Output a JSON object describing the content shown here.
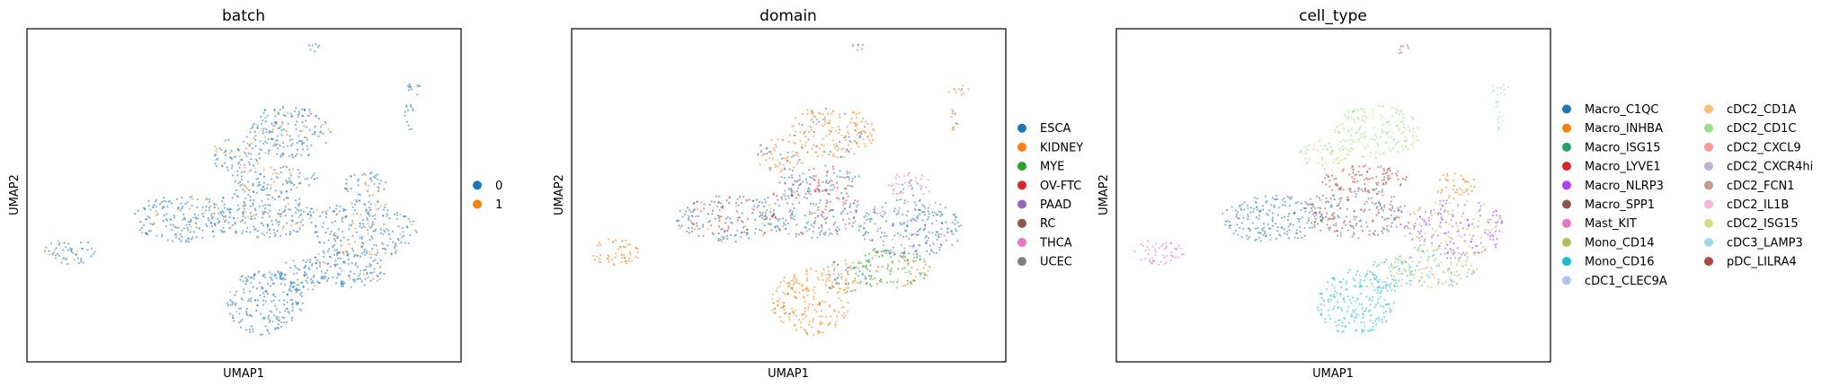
{
  "figure": {
    "panels": [
      {
        "title": "batch",
        "xlabel": "UMAP1",
        "ylabel": "UMAP2",
        "legend_columns": 1,
        "legend": [
          {
            "label": "0",
            "color": "#1f77b4"
          },
          {
            "label": "1",
            "color": "#ff7f0e"
          }
        ]
      },
      {
        "title": "domain",
        "xlabel": "UMAP1",
        "ylabel": "UMAP2",
        "legend_columns": 1,
        "legend": [
          {
            "label": "ESCA",
            "color": "#1f77b4"
          },
          {
            "label": "KIDNEY",
            "color": "#ff7f0e"
          },
          {
            "label": "MYE",
            "color": "#2ca02c"
          },
          {
            "label": "OV-FTC",
            "color": "#d62728"
          },
          {
            "label": "PAAD",
            "color": "#9467bd"
          },
          {
            "label": "RC",
            "color": "#8c564b"
          },
          {
            "label": "THCA",
            "color": "#e377c2"
          },
          {
            "label": "UCEC",
            "color": "#7f7f7f"
          }
        ]
      },
      {
        "title": "cell_type",
        "xlabel": "UMAP1",
        "ylabel": "UMAP2",
        "legend_columns": 2,
        "legend": [
          {
            "label": "Macro_C1QC",
            "color": "#1f77b4"
          },
          {
            "label": "Macro_INHBA",
            "color": "#ff7f0e"
          },
          {
            "label": "Macro_ISG15",
            "color": "#279e68"
          },
          {
            "label": "Macro_LYVE1",
            "color": "#d62728"
          },
          {
            "label": "Macro_NLRP3",
            "color": "#aa40fc"
          },
          {
            "label": "Macro_SPP1",
            "color": "#8c564b"
          },
          {
            "label": "Mast_KIT",
            "color": "#e377c2"
          },
          {
            "label": "Mono_CD14",
            "color": "#b5bd61"
          },
          {
            "label": "Mono_CD16",
            "color": "#17becf"
          },
          {
            "label": "cDC1_CLEC9A",
            "color": "#aec7e8"
          },
          {
            "label": "cDC2_CD1A",
            "color": "#ffbb78"
          },
          {
            "label": "cDC2_CD1C",
            "color": "#98df8a"
          },
          {
            "label": "cDC2_CXCL9",
            "color": "#ff9896"
          },
          {
            "label": "cDC2_CXCR4hi",
            "color": "#c5b0d5"
          },
          {
            "label": "cDC2_FCN1",
            "color": "#c49c94"
          },
          {
            "label": "cDC2_IL1B",
            "color": "#f7b6d2"
          },
          {
            "label": "cDC2_ISG15",
            "color": "#dbdb8d"
          },
          {
            "label": "cDC3_LAMP3",
            "color": "#9edae5"
          },
          {
            "label": "pDC_LILRA4",
            "color": "#ad494a"
          }
        ]
      }
    ]
  },
  "chart_data": [
    {
      "type": "scatter",
      "title": "batch",
      "xlabel": "UMAP1",
      "ylabel": "UMAP2",
      "grid": false,
      "ticks": false,
      "legend_placement": "right",
      "series": [
        {
          "name": "0",
          "color": "#1f77b4",
          "regions": [
            "large central cluster",
            "upper cluster",
            "lower-left cluster",
            "bottom tail",
            "right lobe",
            "left island",
            "top-right island",
            "top island"
          ]
        },
        {
          "name": "1",
          "color": "#ff7f0e",
          "regions": [
            "left island edge",
            "scattered across central and right lobes"
          ]
        }
      ]
    },
    {
      "type": "scatter",
      "title": "domain",
      "xlabel": "UMAP1",
      "ylabel": "UMAP2",
      "grid": false,
      "ticks": false,
      "legend_placement": "right",
      "series": [
        {
          "name": "ESCA",
          "color": "#1f77b4",
          "regions": [
            "central cluster",
            "right lobe"
          ]
        },
        {
          "name": "KIDNEY",
          "color": "#ff7f0e",
          "regions": [
            "upper cluster",
            "bottom tail",
            "left island",
            "top-right island"
          ]
        },
        {
          "name": "MYE",
          "color": "#2ca02c",
          "regions": [
            "lower-right blob"
          ]
        },
        {
          "name": "OV-FTC",
          "color": "#d62728",
          "regions": [
            "left central band"
          ]
        },
        {
          "name": "PAAD",
          "color": "#9467bd",
          "regions": [
            "mid band"
          ]
        },
        {
          "name": "RC",
          "color": "#8c564b",
          "regions": [
            "scattered"
          ]
        },
        {
          "name": "THCA",
          "color": "#e377c2",
          "regions": [
            "right-mid small cluster"
          ]
        },
        {
          "name": "UCEC",
          "color": "#7f7f7f",
          "regions": [
            "scattered"
          ]
        }
      ]
    },
    {
      "type": "scatter",
      "title": "cell_type",
      "xlabel": "UMAP1",
      "ylabel": "UMAP2",
      "grid": false,
      "ticks": false,
      "legend_placement": "right",
      "series": [
        {
          "name": "Macro_C1QC",
          "color": "#1f77b4",
          "regions": [
            "left central cluster"
          ]
        },
        {
          "name": "Macro_INHBA",
          "color": "#ff7f0e",
          "regions": [
            "right-mid cluster"
          ]
        },
        {
          "name": "Macro_ISG15",
          "color": "#279e68",
          "regions": [
            "small mid cluster"
          ]
        },
        {
          "name": "Macro_LYVE1",
          "color": "#d62728",
          "regions": [
            "center cluster"
          ]
        },
        {
          "name": "Macro_NLRP3",
          "color": "#aa40fc",
          "regions": [
            "right lobe"
          ]
        },
        {
          "name": "Macro_SPP1",
          "color": "#8c564b",
          "regions": [
            "mid band"
          ]
        },
        {
          "name": "Mast_KIT",
          "color": "#e377c2",
          "regions": [
            "left island"
          ]
        },
        {
          "name": "Mono_CD14",
          "color": "#b5bd61",
          "regions": [
            "lower-right lobe"
          ]
        },
        {
          "name": "Mono_CD16",
          "color": "#17becf",
          "regions": [
            "bottom tail"
          ]
        },
        {
          "name": "cDC1_CLEC9A",
          "color": "#aec7e8",
          "regions": [
            "top-right island"
          ]
        },
        {
          "name": "cDC2_CD1A",
          "color": "#ffbb78",
          "regions": [
            "scattered"
          ]
        },
        {
          "name": "cDC2_CD1C",
          "color": "#98df8a",
          "regions": [
            "upper cluster"
          ]
        },
        {
          "name": "cDC2_CXCL9",
          "color": "#ff9896",
          "regions": [
            "scattered"
          ]
        },
        {
          "name": "cDC2_CXCR4hi",
          "color": "#c5b0d5",
          "regions": [
            "scattered"
          ]
        },
        {
          "name": "cDC2_FCN1",
          "color": "#c49c94",
          "regions": [
            "scattered"
          ]
        },
        {
          "name": "cDC2_IL1B",
          "color": "#f7b6d2",
          "regions": [
            "scattered"
          ]
        },
        {
          "name": "cDC2_ISG15",
          "color": "#dbdb8d",
          "regions": [
            "upper cluster edge"
          ]
        },
        {
          "name": "cDC3_LAMP3",
          "color": "#9edae5",
          "regions": [
            "top-right island"
          ]
        },
        {
          "name": "pDC_LILRA4",
          "color": "#ad494a",
          "regions": [
            "top island"
          ]
        }
      ]
    }
  ]
}
